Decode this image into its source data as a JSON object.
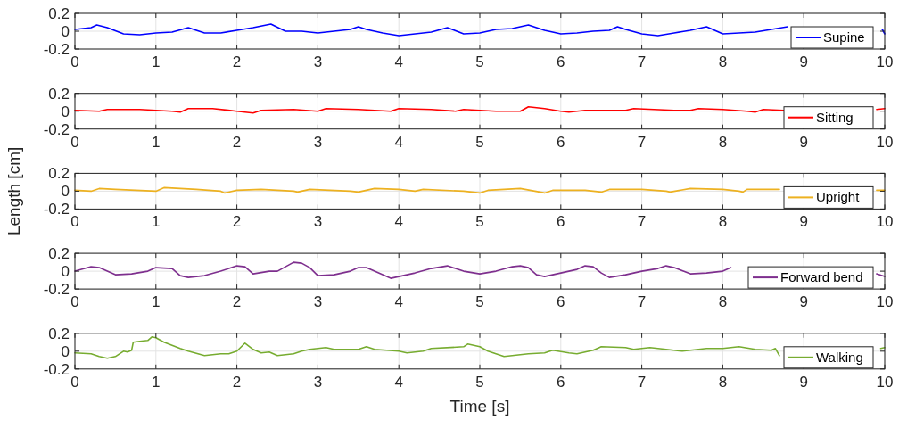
{
  "chart_data": [
    {
      "type": "line",
      "xlim": [
        0,
        10
      ],
      "xticks": [
        0,
        1,
        2,
        3,
        4,
        5,
        6,
        7,
        8,
        9,
        10
      ],
      "ylim": [
        -0.2,
        0.2
      ],
      "yticks": [
        -0.2,
        0,
        0.2
      ],
      "grid": true,
      "legend": "bottom right",
      "series": [
        {
          "name": "Supine",
          "color": "#0000ff",
          "x": [
            0,
            0.2,
            0.27,
            0.4,
            0.6,
            0.8,
            1,
            1.2,
            1.4,
            1.6,
            1.8,
            2,
            2.2,
            2.42,
            2.6,
            2.8,
            3,
            3.2,
            3.4,
            3.5,
            3.6,
            3.8,
            4,
            4.2,
            4.4,
            4.6,
            4.8,
            5,
            5.2,
            5.4,
            5.6,
            5.8,
            6,
            6.2,
            6.4,
            6.6,
            6.7,
            6.8,
            7,
            7.2,
            7.4,
            7.6,
            7.8,
            8,
            8.2,
            8.4,
            8.6,
            8.8,
            9,
            9.5,
            9.97,
            10
          ],
          "values": [
            0.02,
            0.04,
            0.07,
            0.04,
            -0.03,
            -0.04,
            -0.02,
            -0.01,
            0.04,
            -0.02,
            -0.02,
            0.01,
            0.04,
            0.08,
            0,
            0,
            -0.02,
            0,
            0.02,
            0.05,
            0.02,
            -0.02,
            -0.05,
            -0.03,
            -0.01,
            0.04,
            -0.03,
            -0.02,
            0.02,
            0.03,
            0.07,
            0.01,
            -0.03,
            -0.02,
            0,
            0.01,
            0.05,
            0.02,
            -0.03,
            -0.05,
            -0.02,
            0.01,
            0.05,
            -0.03,
            -0.02,
            -0.01,
            0.02,
            0.05,
            null,
            null,
            0.02,
            -0.03
          ]
        }
      ]
    },
    {
      "type": "line",
      "xlim": [
        0,
        10
      ],
      "xticks": [
        0,
        1,
        2,
        3,
        4,
        5,
        6,
        7,
        8,
        9,
        10
      ],
      "ylim": [
        -0.2,
        0.2
      ],
      "yticks": [
        -0.2,
        0,
        0.2
      ],
      "grid": true,
      "legend": "bottom right",
      "series": [
        {
          "name": "Sitting",
          "color": "#ff0000",
          "x": [
            0,
            0.3,
            0.4,
            0.8,
            1.2,
            1.3,
            1.4,
            1.7,
            2,
            2.2,
            2.3,
            2.7,
            3,
            3.1,
            3.5,
            3.9,
            4,
            4.4,
            4.7,
            4.8,
            5.2,
            5.5,
            5.6,
            5.8,
            6,
            6.1,
            6.3,
            6.8,
            6.9,
            7.4,
            7.6,
            7.7,
            8,
            8.3,
            8.4,
            8.5,
            8.75,
            9,
            9.5,
            9.9,
            10
          ],
          "values": [
            0.01,
            0,
            0.02,
            0.02,
            0,
            -0.01,
            0.03,
            0.03,
            0,
            -0.02,
            0.01,
            0.02,
            0,
            0.03,
            0.02,
            0,
            0.03,
            0.02,
            0,
            0.02,
            0,
            0,
            0.05,
            0.03,
            0,
            -0.01,
            0.01,
            0.01,
            0.03,
            0.01,
            0.01,
            0.03,
            0.02,
            0,
            -0.01,
            0.02,
            0.01,
            null,
            null,
            0.02,
            0.03
          ]
        }
      ]
    },
    {
      "type": "line",
      "xlim": [
        0,
        10
      ],
      "xticks": [
        0,
        1,
        2,
        3,
        4,
        5,
        6,
        7,
        8,
        9,
        10
      ],
      "ylim": [
        -0.2,
        0.2
      ],
      "yticks": [
        -0.2,
        0,
        0.2
      ],
      "grid": true,
      "legend": "bottom right",
      "ylabel": "Length [cm]",
      "series": [
        {
          "name": "Upright",
          "color": "#edb120",
          "x": [
            0,
            0.2,
            0.3,
            0.5,
            1,
            1.1,
            1.5,
            1.8,
            1.85,
            2,
            2.3,
            2.7,
            2.75,
            2.9,
            3.4,
            3.5,
            3.7,
            4,
            4.2,
            4.3,
            4.8,
            5,
            5.1,
            5.5,
            5.8,
            5.9,
            6.3,
            6.5,
            6.6,
            7,
            7.3,
            7.35,
            7.6,
            8,
            8.2,
            8.25,
            8.3,
            8.7,
            9,
            9.5,
            9.9,
            10
          ],
          "values": [
            0.01,
            0,
            0.03,
            0.02,
            0,
            0.04,
            0.02,
            0,
            -0.02,
            0.01,
            0.02,
            0,
            -0.01,
            0.02,
            0,
            -0.01,
            0.03,
            0.02,
            0,
            0.02,
            0,
            -0.02,
            0.01,
            0.03,
            -0.02,
            0.01,
            0.01,
            -0.01,
            0.02,
            0.02,
            0,
            -0.01,
            0.03,
            0.02,
            0,
            -0.01,
            0.02,
            0.02,
            null,
            null,
            0.01,
            0.01
          ]
        }
      ]
    },
    {
      "type": "line",
      "xlim": [
        0,
        10
      ],
      "xticks": [
        0,
        1,
        2,
        3,
        4,
        5,
        6,
        7,
        8,
        9,
        10
      ],
      "ylim": [
        -0.2,
        0.2
      ],
      "yticks": [
        -0.2,
        0,
        0.2
      ],
      "grid": true,
      "legend": "bottom right",
      "series": [
        {
          "name": "Forward bend",
          "color": "#7e2f8e",
          "x": [
            0,
            0.2,
            0.3,
            0.5,
            0.7,
            0.9,
            1,
            1.2,
            1.3,
            1.4,
            1.6,
            1.8,
            2,
            2.1,
            2.2,
            2.4,
            2.5,
            2.6,
            2.7,
            2.8,
            2.9,
            3,
            3.2,
            3.4,
            3.5,
            3.6,
            3.8,
            3.9,
            4,
            4.2,
            4.4,
            4.6,
            4.8,
            5,
            5.2,
            5.4,
            5.5,
            5.6,
            5.7,
            5.8,
            6,
            6.2,
            6.3,
            6.4,
            6.5,
            6.6,
            6.8,
            7,
            7.2,
            7.3,
            7.4,
            7.6,
            7.8,
            8,
            8.1,
            8.5,
            9.5,
            9.9,
            10
          ],
          "values": [
            0,
            0.05,
            0.04,
            -0.04,
            -0.03,
            0,
            0.04,
            0.03,
            -0.05,
            -0.07,
            -0.05,
            0,
            0.06,
            0.05,
            -0.03,
            0,
            0,
            0.05,
            0.1,
            0.09,
            0.04,
            -0.05,
            -0.04,
            0,
            0.04,
            0.04,
            -0.04,
            -0.08,
            -0.06,
            -0.02,
            0.03,
            0.06,
            0,
            -0.03,
            0,
            0.05,
            0.06,
            0.04,
            -0.04,
            -0.06,
            -0.02,
            0.02,
            0.06,
            0.05,
            -0.02,
            -0.07,
            -0.04,
            0,
            0.03,
            0.06,
            0.04,
            -0.03,
            -0.02,
            0,
            0.04,
            null,
            null,
            -0.03,
            -0.06
          ]
        }
      ]
    },
    {
      "type": "line",
      "xlim": [
        0,
        10
      ],
      "xticks": [
        0,
        1,
        2,
        3,
        4,
        5,
        6,
        7,
        8,
        9,
        10
      ],
      "ylim": [
        -0.2,
        0.2
      ],
      "yticks": [
        -0.2,
        0,
        0.2
      ],
      "grid": true,
      "legend": "bottom right",
      "xlabel": "Time [s]",
      "series": [
        {
          "name": "Walking",
          "color": "#77ac30",
          "x": [
            0,
            0.2,
            0.3,
            0.4,
            0.5,
            0.6,
            0.65,
            0.7,
            0.72,
            0.8,
            0.9,
            0.95,
            1,
            1.1,
            1.3,
            1.4,
            1.6,
            1.8,
            1.9,
            2,
            2.1,
            2.2,
            2.3,
            2.4,
            2.5,
            2.7,
            2.8,
            2.9,
            3.1,
            3.2,
            3.5,
            3.6,
            3.7,
            4,
            4.1,
            4.3,
            4.4,
            4.8,
            4.85,
            5,
            5.1,
            5.3,
            5.6,
            5.8,
            5.9,
            6.1,
            6.2,
            6.4,
            6.5,
            6.8,
            6.9,
            7.1,
            7.3,
            7.5,
            7.7,
            7.8,
            8,
            8.2,
            8.4,
            8.6,
            8.65,
            8.7,
            9,
            9.5,
            9.95,
            10
          ],
          "values": [
            -0.02,
            -0.03,
            -0.06,
            -0.08,
            -0.06,
            0,
            -0.01,
            0.01,
            0.1,
            0.11,
            0.12,
            0.16,
            0.15,
            0.1,
            0.03,
            0,
            -0.05,
            -0.03,
            -0.03,
            0,
            0.09,
            0.02,
            -0.02,
            -0.01,
            -0.05,
            -0.03,
            0,
            0.02,
            0.04,
            0.02,
            0.02,
            0.05,
            0.02,
            0,
            -0.02,
            0,
            0.03,
            0.05,
            0.08,
            0.05,
            0,
            -0.06,
            -0.03,
            -0.02,
            0.01,
            -0.02,
            -0.03,
            0.01,
            0.05,
            0.04,
            0.02,
            0.04,
            0.02,
            0,
            0.02,
            0.03,
            0.03,
            0.05,
            0.02,
            0.01,
            0.03,
            -0.05,
            null,
            null,
            0.03,
            0.04
          ]
        }
      ]
    }
  ]
}
